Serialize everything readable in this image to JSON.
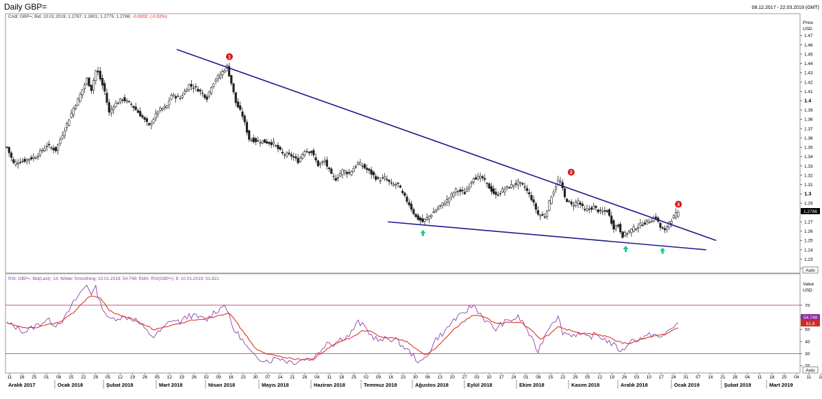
{
  "header": {
    "title": "Daily GBP=",
    "date_range": "08.12.2017 - 22.03.2019 (GMT)"
  },
  "price_panel": {
    "legend": "Cndl; GBP=; Bid; 10.01.2019; 1.2787; 1.2801; 1.2775; 1.2786; ",
    "legend_change": "-0.0002; (-0.02%)",
    "axis_title": "Price",
    "axis_unit": "USD",
    "last_price": "1.2786",
    "auto_label": "Auto",
    "markers": [
      "1",
      "2",
      "3"
    ]
  },
  "rsi_panel": {
    "legend": "RSI; GBP=; Bid(Last); 14; Wilder Smoothing; 10.01.2019; 54.749; EMA; RSI(GBP=); 8; 10.01.2019; 51.821",
    "axis_title": "Value",
    "axis_unit": "USD",
    "last_rsi": "54.749",
    "last_ema": "51.8",
    "auto_label": "Auto"
  },
  "x_axis": {
    "day_labels": [
      "11",
      "18",
      "25",
      "01",
      "08",
      "15",
      "22",
      "29",
      "05",
      "12",
      "19",
      "26",
      "05",
      "12",
      "19",
      "26",
      "02",
      "09",
      "16",
      "23",
      "30",
      "07",
      "14",
      "21",
      "28",
      "04",
      "11",
      "18",
      "25",
      "02",
      "09",
      "16",
      "23",
      "30",
      "06",
      "13",
      "20",
      "27",
      "03",
      "10",
      "17",
      "24",
      "01",
      "08",
      "15",
      "22",
      "29",
      "05",
      "12",
      "19",
      "26",
      "03",
      "10",
      "17",
      "24",
      "31",
      "07",
      "14",
      "21",
      "28",
      "04",
      "11",
      "18",
      "25",
      "04",
      "11",
      "18"
    ],
    "month_labels": [
      "Aralık 2017",
      "Ocak 2018",
      "Şubat 2018",
      "Mart 2018",
      "Nisan 2018",
      "Mayıs 2018",
      "Haziran 2018",
      "Temmuz 2018",
      "Ağustos 2018",
      "Eylül 2018",
      "Ekim 2018",
      "Kasım 2018",
      "Aralık 2018",
      "Ocak 2019",
      "Şubat 2019",
      "Mart 2019"
    ]
  },
  "colors": {
    "trendline": "#1a1a8c",
    "rsi_line": "#8a3fa8",
    "ema_line": "#e03020",
    "marker": "#d61a1a",
    "arrow": "#19c98a",
    "level_line": "#b24060"
  },
  "chart_data": [
    {
      "type": "candlestick",
      "series_label": "GBP=",
      "ylabel": "Price USD",
      "ylim": [
        1.215,
        1.478
      ],
      "y_ticks": [
        1.47,
        1.46,
        1.45,
        1.44,
        1.43,
        1.42,
        1.41,
        1.4,
        1.39,
        1.38,
        1.37,
        1.36,
        1.35,
        1.34,
        1.33,
        1.32,
        1.31,
        1.3,
        1.29,
        1.28,
        1.27,
        1.26,
        1.25,
        1.24,
        1.23,
        1.22
      ],
      "y_tick_labels": [
        "1.47",
        "1.46",
        "1.45",
        "1.44",
        "1.43",
        "1.42",
        "1.41",
        "1.4",
        "1.39",
        "1.38",
        "1.37",
        "1.36",
        "1.35",
        "1.34",
        "1.33",
        "1.32",
        "1.31",
        "1.3",
        "1.29",
        "1.28",
        "1.27",
        "1.26",
        "1.25",
        "1.24",
        "1.23",
        "1.22"
      ],
      "path_closes": [
        [
          0,
          1.35
        ],
        [
          3,
          1.333
        ],
        [
          8,
          1.336
        ],
        [
          13,
          1.34
        ],
        [
          18,
          1.352
        ],
        [
          22,
          1.347
        ],
        [
          25,
          1.364
        ],
        [
          30,
          1.392
        ],
        [
          32,
          1.401
        ],
        [
          34,
          1.412
        ],
        [
          36,
          1.423
        ],
        [
          38,
          1.412
        ],
        [
          40,
          1.432
        ],
        [
          41,
          1.43
        ],
        [
          44,
          1.41
        ],
        [
          46,
          1.387
        ],
        [
          48,
          1.395
        ],
        [
          52,
          1.402
        ],
        [
          56,
          1.396
        ],
        [
          60,
          1.385
        ],
        [
          64,
          1.373
        ],
        [
          68,
          1.389
        ],
        [
          72,
          1.394
        ],
        [
          74,
          1.406
        ],
        [
          78,
          1.403
        ],
        [
          82,
          1.417
        ],
        [
          86,
          1.412
        ],
        [
          90,
          1.403
        ],
        [
          92,
          1.416
        ],
        [
          94,
          1.423
        ],
        [
          96,
          1.428
        ],
        [
          98,
          1.434
        ],
        [
          99,
          1.437
        ],
        [
          101,
          1.419
        ],
        [
          103,
          1.398
        ],
        [
          106,
          1.384
        ],
        [
          109,
          1.359
        ],
        [
          112,
          1.357
        ],
        [
          116,
          1.356
        ],
        [
          120,
          1.354
        ],
        [
          124,
          1.343
        ],
        [
          128,
          1.341
        ],
        [
          131,
          1.335
        ],
        [
          134,
          1.347
        ],
        [
          137,
          1.345
        ],
        [
          140,
          1.331
        ],
        [
          143,
          1.335
        ],
        [
          146,
          1.32
        ],
        [
          148,
          1.316
        ],
        [
          151,
          1.325
        ],
        [
          154,
          1.322
        ],
        [
          158,
          1.333
        ],
        [
          160,
          1.33
        ],
        [
          163,
          1.324
        ],
        [
          167,
          1.315
        ],
        [
          170,
          1.317
        ],
        [
          173,
          1.31
        ],
        [
          176,
          1.31
        ],
        [
          178,
          1.3
        ],
        [
          181,
          1.289
        ],
        [
          184,
          1.275
        ],
        [
          187,
          1.27
        ],
        [
          190,
          1.276
        ],
        [
          194,
          1.285
        ],
        [
          198,
          1.293
        ],
        [
          202,
          1.304
        ],
        [
          206,
          1.301
        ],
        [
          210,
          1.318
        ],
        [
          214,
          1.317
        ],
        [
          216,
          1.31
        ],
        [
          220,
          1.298
        ],
        [
          223,
          1.304
        ],
        [
          227,
          1.309
        ],
        [
          230,
          1.312
        ],
        [
          233,
          1.307
        ],
        [
          236,
          1.295
        ],
        [
          239,
          1.278
        ],
        [
          242,
          1.276
        ],
        [
          245,
          1.298
        ],
        [
          248,
          1.314
        ],
        [
          249,
          1.313
        ],
        [
          251,
          1.296
        ],
        [
          254,
          1.288
        ],
        [
          257,
          1.292
        ],
        [
          260,
          1.282
        ],
        [
          264,
          1.286
        ],
        [
          267,
          1.28
        ],
        [
          270,
          1.282
        ],
        [
          273,
          1.264
        ],
        [
          275,
          1.266
        ],
        [
          277,
          1.255
        ],
        [
          280,
          1.26
        ],
        [
          283,
          1.264
        ],
        [
          286,
          1.268
        ],
        [
          289,
          1.271
        ],
        [
          292,
          1.275
        ],
        [
          294,
          1.264
        ],
        [
          296,
          1.26
        ],
        [
          298,
          1.27
        ],
        [
          301,
          1.278
        ],
        [
          302,
          1.2786
        ]
      ],
      "pivot_points": [
        {
          "label": "1",
          "x": "2018-04-17",
          "y": 1.437
        },
        {
          "label": "2",
          "x": "2018-11-07",
          "y": 1.313
        },
        {
          "label": "3",
          "x": "2019-01-10",
          "y": 1.2786
        }
      ],
      "trendlines": [
        {
          "kind": "resistance",
          "from": [
            "2018-03-19",
            1.455
          ],
          "to": [
            "2019-02-04",
            1.25
          ]
        },
        {
          "kind": "support",
          "from": [
            "2018-07-23",
            1.27
          ],
          "to": [
            "2019-01-29",
            1.24
          ]
        }
      ],
      "last_value": 1.2786,
      "last_bar": {
        "date": "10.01.2019",
        "open": 1.2787,
        "high": 1.2801,
        "low": 1.2775,
        "close": 1.2786
      }
    },
    {
      "type": "line",
      "series": [
        {
          "name": "RSI",
          "values_path": [
            [
              0,
              55
            ],
            [
              4,
              52
            ],
            [
              8,
              48
            ],
            [
              12,
              52
            ],
            [
              18,
              58
            ],
            [
              22,
              54
            ],
            [
              26,
              59
            ],
            [
              30,
              72
            ],
            [
              33,
              80
            ],
            [
              36,
              87
            ],
            [
              38,
              80
            ],
            [
              40,
              84
            ],
            [
              42,
              72
            ],
            [
              46,
              58
            ],
            [
              50,
              60
            ],
            [
              54,
              60
            ],
            [
              58,
              58
            ],
            [
              62,
              50
            ],
            [
              66,
              44
            ],
            [
              70,
              50
            ],
            [
              74,
              58
            ],
            [
              78,
              56
            ],
            [
              82,
              62
            ],
            [
              86,
              60
            ],
            [
              90,
              58
            ],
            [
              93,
              64
            ],
            [
              96,
              67
            ],
            [
              98,
              72
            ],
            [
              100,
              60
            ],
            [
              102,
              50
            ],
            [
              105,
              44
            ],
            [
              108,
              35
            ],
            [
              111,
              28
            ],
            [
              114,
              26
            ],
            [
              118,
              24
            ],
            [
              122,
              27
            ],
            [
              126,
              24
            ],
            [
              130,
              23
            ],
            [
              134,
              26
            ],
            [
              137,
              25
            ],
            [
              140,
              30
            ],
            [
              144,
              40
            ],
            [
              147,
              38
            ],
            [
              150,
              42
            ],
            [
              154,
              45
            ],
            [
              158,
              56
            ],
            [
              161,
              52
            ],
            [
              164,
              45
            ],
            [
              168,
              40
            ],
            [
              171,
              43
            ],
            [
              175,
              41
            ],
            [
              179,
              35
            ],
            [
              183,
              28
            ],
            [
              186,
              22
            ],
            [
              189,
              28
            ],
            [
              193,
              42
            ],
            [
              197,
              48
            ],
            [
              201,
              58
            ],
            [
              205,
              62
            ],
            [
              208,
              68
            ],
            [
              210,
              70
            ],
            [
              213,
              63
            ],
            [
              216,
              56
            ],
            [
              220,
              50
            ],
            [
              223,
              55
            ],
            [
              227,
              58
            ],
            [
              230,
              60
            ],
            [
              233,
              54
            ],
            [
              236,
              42
            ],
            [
              239,
              32
            ],
            [
              242,
              45
            ],
            [
              245,
              56
            ],
            [
              248,
              60
            ],
            [
              250,
              48
            ],
            [
              253,
              46
            ],
            [
              257,
              46
            ],
            [
              261,
              43
            ],
            [
              265,
              46
            ],
            [
              269,
              42
            ],
            [
              273,
              37
            ],
            [
              275,
              34
            ],
            [
              277,
              32
            ],
            [
              280,
              40
            ],
            [
              284,
              42
            ],
            [
              288,
              44
            ],
            [
              291,
              47
            ],
            [
              294,
              42
            ],
            [
              297,
              48
            ],
            [
              300,
              53
            ],
            [
              302,
              54.749
            ]
          ]
        },
        {
          "name": "EMA",
          "values_path": [
            [
              0,
              55
            ],
            [
              6,
              52
            ],
            [
              12,
              51
            ],
            [
              18,
              54
            ],
            [
              24,
              56
            ],
            [
              30,
              64
            ],
            [
              34,
              72
            ],
            [
              38,
              78
            ],
            [
              42,
              76
            ],
            [
              46,
              66
            ],
            [
              50,
              62
            ],
            [
              56,
              59
            ],
            [
              62,
              54
            ],
            [
              66,
              50
            ],
            [
              72,
              52
            ],
            [
              78,
              55
            ],
            [
              84,
              58
            ],
            [
              90,
              59
            ],
            [
              96,
              62
            ],
            [
              100,
              64
            ],
            [
              104,
              54
            ],
            [
              108,
              44
            ],
            [
              112,
              34
            ],
            [
              116,
              30
            ],
            [
              122,
              28
            ],
            [
              128,
              26
            ],
            [
              134,
              25
            ],
            [
              138,
              26
            ],
            [
              142,
              31
            ],
            [
              146,
              36
            ],
            [
              150,
              40
            ],
            [
              156,
              44
            ],
            [
              160,
              49
            ],
            [
              164,
              48
            ],
            [
              168,
              44
            ],
            [
              174,
              43
            ],
            [
              180,
              40
            ],
            [
              184,
              34
            ],
            [
              188,
              29
            ],
            [
              192,
              33
            ],
            [
              196,
              40
            ],
            [
              200,
              48
            ],
            [
              205,
              56
            ],
            [
              210,
              62
            ],
            [
              215,
              60
            ],
            [
              220,
              55
            ],
            [
              226,
              56
            ],
            [
              232,
              55
            ],
            [
              236,
              49
            ],
            [
              240,
              42
            ],
            [
              244,
              46
            ],
            [
              248,
              52
            ],
            [
              252,
              50
            ],
            [
              258,
              47
            ],
            [
              264,
              46
            ],
            [
              270,
              44
            ],
            [
              275,
              40
            ],
            [
              279,
              38
            ],
            [
              284,
              41
            ],
            [
              290,
              44
            ],
            [
              296,
              46
            ],
            [
              302,
              51.821
            ]
          ]
        }
      ],
      "ylim": [
        14,
        96
      ],
      "y_ticks": [
        70,
        60,
        50,
        40,
        30,
        20
      ],
      "y_tick_labels": [
        "70",
        "60",
        "50",
        "40",
        "30",
        "20"
      ],
      "reference_levels": [
        70,
        30
      ],
      "last_values": {
        "RSI": 54.749,
        "EMA": 51.821
      }
    }
  ]
}
